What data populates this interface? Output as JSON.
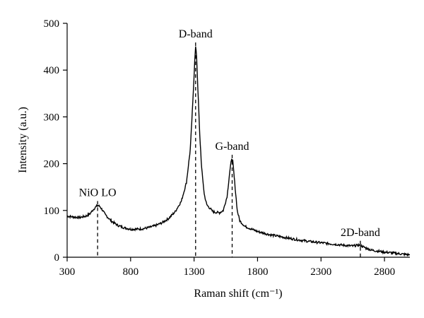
{
  "chart_data": {
    "type": "line",
    "xlabel": "Raman shift (cm⁻¹)",
    "ylabel": "Intensity (a.u.)",
    "xlim": [
      300,
      3000
    ],
    "ylim": [
      0,
      500
    ],
    "x_ticks": [
      300,
      800,
      1300,
      1800,
      2300,
      2800
    ],
    "y_ticks": [
      0,
      100,
      200,
      300,
      400,
      500
    ],
    "grid": false,
    "series": [
      {
        "color": "#000000",
        "points": [
          [
            300,
            88
          ],
          [
            350,
            86
          ],
          [
            400,
            85
          ],
          [
            450,
            88
          ],
          [
            480,
            93
          ],
          [
            500,
            100
          ],
          [
            520,
            106
          ],
          [
            540,
            111
          ],
          [
            560,
            108
          ],
          [
            580,
            100
          ],
          [
            600,
            91
          ],
          [
            650,
            77
          ],
          [
            700,
            68
          ],
          [
            750,
            63
          ],
          [
            800,
            60
          ],
          [
            850,
            60
          ],
          [
            900,
            61
          ],
          [
            950,
            64
          ],
          [
            1000,
            68
          ],
          [
            1050,
            74
          ],
          [
            1100,
            83
          ],
          [
            1150,
            97
          ],
          [
            1200,
            120
          ],
          [
            1240,
            160
          ],
          [
            1270,
            230
          ],
          [
            1290,
            330
          ],
          [
            1305,
            420
          ],
          [
            1312,
            450
          ],
          [
            1320,
            430
          ],
          [
            1330,
            360
          ],
          [
            1345,
            260
          ],
          [
            1360,
            190
          ],
          [
            1380,
            135
          ],
          [
            1400,
            112
          ],
          [
            1450,
            97
          ],
          [
            1500,
            95
          ],
          [
            1530,
            100
          ],
          [
            1560,
            130
          ],
          [
            1580,
            180
          ],
          [
            1595,
            210
          ],
          [
            1605,
            205
          ],
          [
            1620,
            160
          ],
          [
            1640,
            100
          ],
          [
            1660,
            78
          ],
          [
            1700,
            66
          ],
          [
            1800,
            55
          ],
          [
            1900,
            48
          ],
          [
            2000,
            43
          ],
          [
            2100,
            38
          ],
          [
            2200,
            34
          ],
          [
            2300,
            31
          ],
          [
            2400,
            28
          ],
          [
            2500,
            25
          ],
          [
            2550,
            24
          ],
          [
            2600,
            26
          ],
          [
            2620,
            24
          ],
          [
            2650,
            20
          ],
          [
            2700,
            15
          ],
          [
            2800,
            11
          ],
          [
            2900,
            8
          ],
          [
            3000,
            5
          ]
        ]
      }
    ],
    "annotations": [
      {
        "label": "NiO LO",
        "x": 540,
        "y": 111
      },
      {
        "label": "D-band",
        "x": 1312,
        "y": 450
      },
      {
        "label": "G-band",
        "x": 1600,
        "y": 210
      },
      {
        "label": "2D-band",
        "x": 2610,
        "y": 26
      }
    ]
  }
}
